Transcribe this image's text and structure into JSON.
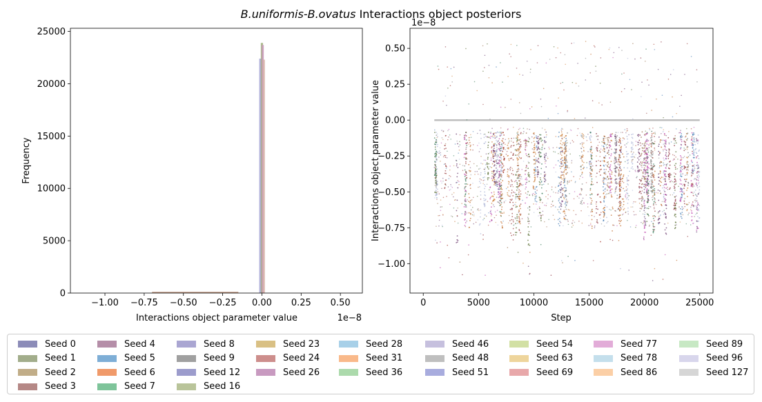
{
  "figure": {
    "title_italic": "B.uniformis-B.ovatus",
    "title_rest": " Interactions object posteriors"
  },
  "chart_data": [
    {
      "type": "histogram",
      "xlabel": "Interactions object parameter value",
      "ylabel": "Frequency",
      "x_offset_label": "1e−8",
      "xlim": [
        -1.22,
        0.64
      ],
      "ylim": [
        0,
        25300
      ],
      "x_ticks": [
        -1.0,
        -0.75,
        -0.5,
        -0.25,
        0.0,
        0.25,
        0.5
      ],
      "x_tick_labels": [
        "−1.00",
        "−0.75",
        "−0.50",
        "−0.25",
        "0.00",
        "0.25",
        "0.50"
      ],
      "y_ticks": [
        0,
        5000,
        10000,
        15000,
        20000,
        25000
      ],
      "y_tick_labels": [
        "0",
        "5000",
        "10000",
        "15000",
        "20000",
        "25000"
      ],
      "peak_bars": [
        {
          "x": -0.01,
          "height": 22400,
          "color": "#a4a4d6"
        },
        {
          "x": 0.0,
          "height": 23900,
          "color": "#9cae78"
        },
        {
          "x": 0.005,
          "height": 23700,
          "color": "#c89ab8"
        },
        {
          "x": 0.012,
          "height": 22300,
          "color": "#d6b0a8"
        }
      ],
      "tail_range": [
        -0.7,
        -0.15
      ],
      "tail_height": 120,
      "grid": false
    },
    {
      "type": "scatter",
      "xlabel": "Step",
      "ylabel": "Interactions object parameter value",
      "y_offset_label": "1e−8",
      "xlim": [
        -1200,
        26200
      ],
      "ylim": [
        -1.205,
        0.64
      ],
      "x_ticks": [
        0,
        5000,
        10000,
        15000,
        20000,
        25000
      ],
      "x_tick_labels": [
        "0",
        "5000",
        "10000",
        "15000",
        "20000",
        "25000"
      ],
      "y_ticks": [
        -1.0,
        -0.75,
        -0.5,
        -0.25,
        0.0,
        0.25,
        0.5
      ],
      "y_tick_labels": [
        "−1.00",
        "−0.75",
        "−0.50",
        "−0.25",
        "0.00",
        "0.25",
        "0.50"
      ],
      "baseline_y": 0.0,
      "step_range": [
        1000,
        25000
      ],
      "typical_range": [
        -0.75,
        -0.05
      ],
      "extreme_low": -1.12,
      "extreme_high": 0.55,
      "grid": false
    }
  ],
  "legend": {
    "placement": "below",
    "columns": [
      [
        {
          "label": "Seed 0",
          "color": "#8c8cb8"
        },
        {
          "label": "Seed 1",
          "color": "#a2ad8b"
        },
        {
          "label": "Seed 2",
          "color": "#c1ad88"
        },
        {
          "label": "Seed 3",
          "color": "#b58886"
        }
      ],
      [
        {
          "label": "Seed 4",
          "color": "#b58ea8"
        },
        {
          "label": "Seed 5",
          "color": "#7eaed6"
        },
        {
          "label": "Seed 6",
          "color": "#f09a6a"
        },
        {
          "label": "Seed 7",
          "color": "#7ec49a"
        }
      ],
      [
        {
          "label": "Seed 8",
          "color": "#aaa6d2"
        },
        {
          "label": "Seed 9",
          "color": "#a0a0a0"
        },
        {
          "label": "Seed 12",
          "color": "#9c9ccc"
        },
        {
          "label": "Seed 16",
          "color": "#b9c49a"
        }
      ],
      [
        {
          "label": "Seed 23",
          "color": "#d9c084"
        },
        {
          "label": "Seed 24",
          "color": "#cd8e8c"
        },
        {
          "label": "Seed 26",
          "color": "#c89ac0"
        }
      ],
      [
        {
          "label": "Seed 28",
          "color": "#a8d0e8"
        },
        {
          "label": "Seed 31",
          "color": "#f9b98a"
        },
        {
          "label": "Seed 36",
          "color": "#acdaac"
        }
      ],
      [
        {
          "label": "Seed 46",
          "color": "#c6c0de"
        },
        {
          "label": "Seed 48",
          "color": "#bfbfbf"
        },
        {
          "label": "Seed 51",
          "color": "#a8acde"
        }
      ],
      [
        {
          "label": "Seed 54",
          "color": "#d2e0a4"
        },
        {
          "label": "Seed 63",
          "color": "#eed59c"
        },
        {
          "label": "Seed 69",
          "color": "#e8a8aa"
        }
      ],
      [
        {
          "label": "Seed 77",
          "color": "#e2acd8"
        },
        {
          "label": "Seed 78",
          "color": "#c4dfec"
        },
        {
          "label": "Seed 86",
          "color": "#fbcfa6"
        }
      ],
      [
        {
          "label": "Seed 89",
          "color": "#c7e8c4"
        },
        {
          "label": "Seed 96",
          "color": "#d8d6ec"
        },
        {
          "label": "Seed 127",
          "color": "#d6d6d6"
        }
      ]
    ]
  },
  "scatter_palette": [
    "#8b2e3e",
    "#6b3a6e",
    "#a63c2e",
    "#556b2f",
    "#c06c2c",
    "#4a7fb5",
    "#c04cb0",
    "#8e8e8e",
    "#9a6f4c",
    "#b0b8d8",
    "#a24b4b",
    "#6e4f7e",
    "#d08a4a",
    "#3f7f5f"
  ]
}
